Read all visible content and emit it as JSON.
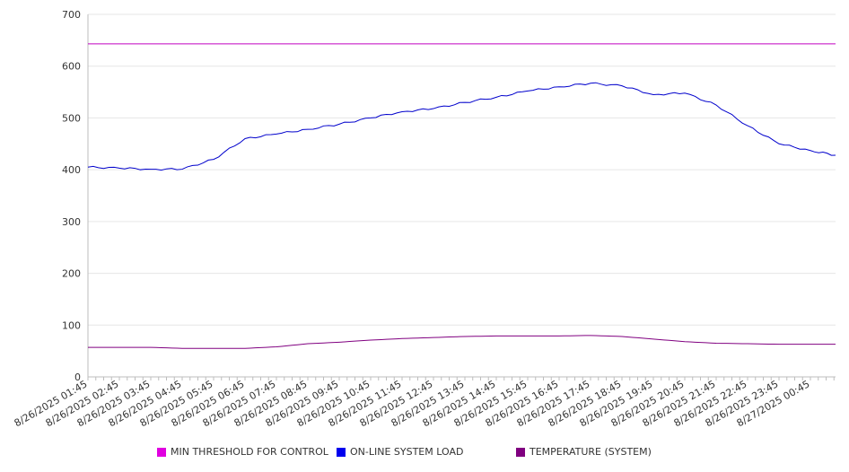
{
  "chart_data": {
    "type": "line",
    "title": "",
    "xlabel": "",
    "ylabel": "",
    "ylim": [
      0,
      700
    ],
    "yticks": [
      "0",
      "100",
      "200",
      "300",
      "400",
      "500",
      "600",
      "700"
    ],
    "grid": "horizontal",
    "legend_position": "bottom",
    "x_tick_labels": [
      "8/26/2025 01:45",
      "8/26/2025 02:45",
      "8/26/2025 03:45",
      "8/26/2025 04:45",
      "8/26/2025 05:45",
      "8/26/2025 06:45",
      "8/26/2025 07:45",
      "8/26/2025 08:45",
      "8/26/2025 09:45",
      "8/26/2025 10:45",
      "8/26/2025 11:45",
      "8/26/2025 12:45",
      "8/26/2025 13:45",
      "8/26/2025 14:45",
      "8/26/2025 15:45",
      "8/26/2025 16:45",
      "8/26/2025 17:45",
      "8/26/2025 18:45",
      "8/26/2025 19:45",
      "8/26/2025 20:45",
      "8/26/2025 21:45",
      "8/26/2025 22:45",
      "8/26/2025 23:45",
      "8/27/2025 00:45"
    ],
    "x": [
      "8/26/2025 01:45",
      "8/26/2025 02:45",
      "8/26/2025 03:45",
      "8/26/2025 04:45",
      "8/26/2025 05:45",
      "8/26/2025 06:45",
      "8/26/2025 07:45",
      "8/26/2025 08:45",
      "8/26/2025 09:45",
      "8/26/2025 10:45",
      "8/26/2025 11:45",
      "8/26/2025 12:45",
      "8/26/2025 13:45",
      "8/26/2025 14:45",
      "8/26/2025 15:45",
      "8/26/2025 16:45",
      "8/26/2025 17:45",
      "8/26/2025 18:45",
      "8/26/2025 19:45",
      "8/26/2025 20:45",
      "8/26/2025 21:45",
      "8/26/2025 22:45",
      "8/26/2025 23:45",
      "8/27/2025 00:45",
      "8/27/2025 01:30"
    ],
    "series": [
      {
        "name": "MIN THRESHOLD FOR CONTROL",
        "color": "#c000c0",
        "values": [
          643,
          643,
          643,
          643,
          643,
          643,
          643,
          643,
          643,
          643,
          643,
          643,
          643,
          643,
          643,
          643,
          643,
          643,
          643,
          643,
          643,
          643,
          643,
          643,
          643
        ]
      },
      {
        "name": "ON-LINE SYSTEM LOAD",
        "color": "#0000cc",
        "values": [
          405,
          403,
          401,
          401,
          420,
          460,
          469,
          478,
          488,
          500,
          512,
          518,
          530,
          540,
          552,
          560,
          567,
          562,
          545,
          548,
          525,
          485,
          450,
          437,
          428
        ]
      },
      {
        "name": "TEMPERATURE (SYSTEM)",
        "color": "#800080",
        "values": [
          57,
          57,
          57,
          55,
          55,
          55,
          58,
          64,
          67,
          71,
          74,
          76,
          78,
          79,
          79,
          79,
          80,
          78,
          73,
          68,
          65,
          64,
          63,
          63,
          63
        ]
      }
    ]
  }
}
